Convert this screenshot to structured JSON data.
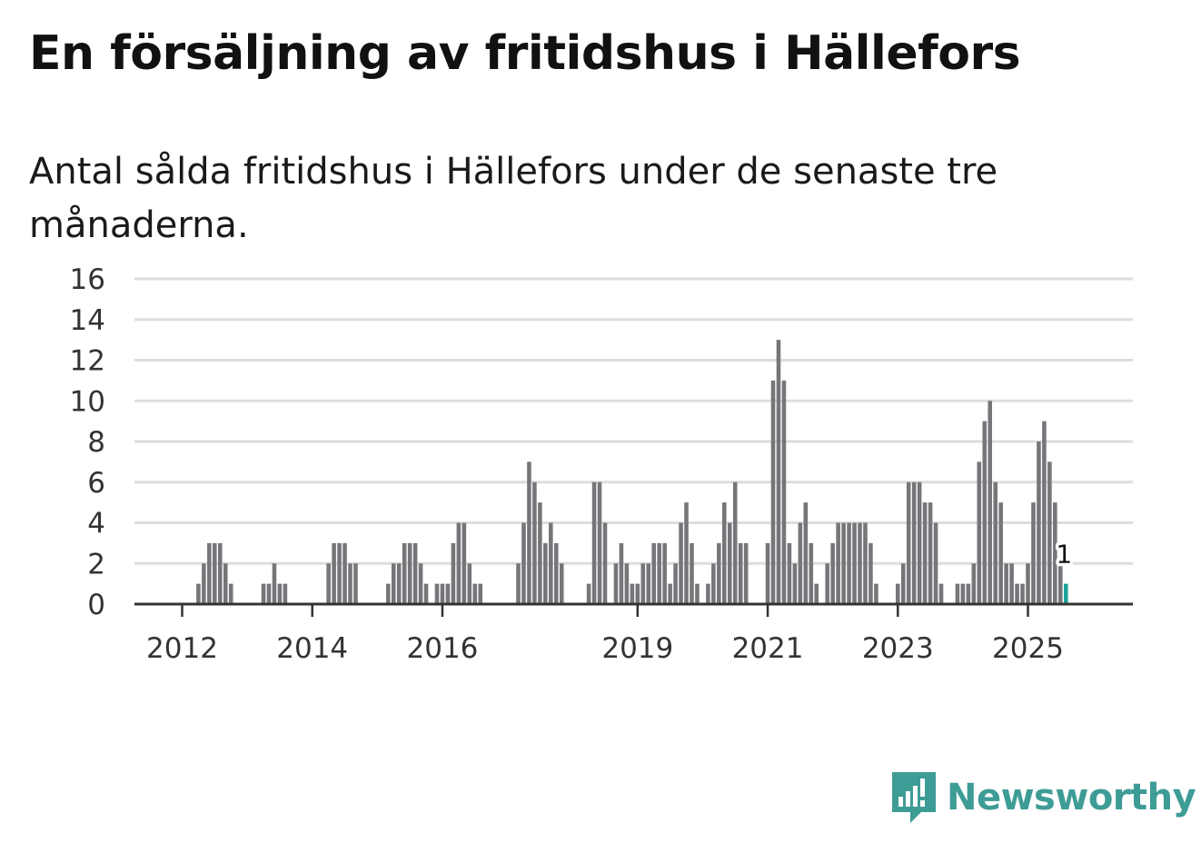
{
  "title": "En försäljning av fritidshus i Hällefors",
  "subtitle": "Antal sålda fritidshus i Hällefors under de senaste tre månaderna.",
  "brand": {
    "name": "Newsworthy",
    "color": "#3e9c96",
    "icon": "bar-chart-speech-bubble-icon"
  },
  "colors": {
    "bar": "#76767a",
    "highlight": "#18a39b",
    "grid": "#dddddd",
    "axis": "#333333"
  },
  "chart_data": {
    "type": "bar",
    "title": "",
    "xlabel": "",
    "ylabel": "",
    "ylim": [
      0,
      16
    ],
    "y_ticks": [
      "0",
      "2",
      "4",
      "6",
      "8",
      "10",
      "12",
      "14",
      "16"
    ],
    "x_ticks": [
      {
        "label": "2012",
        "month": "2012-01"
      },
      {
        "label": "2014",
        "month": "2014-01"
      },
      {
        "label": "2016",
        "month": "2016-01"
      },
      {
        "label": "2019",
        "month": "2019-01"
      },
      {
        "label": "2021",
        "month": "2021-01"
      },
      {
        "label": "2023",
        "month": "2023-01"
      },
      {
        "label": "2025",
        "month": "2025-01"
      }
    ],
    "grid": true,
    "start_month": "2011-05",
    "values": [
      0,
      0,
      0,
      0,
      0,
      0,
      0,
      0,
      0,
      0,
      0,
      1,
      2,
      3,
      3,
      3,
      2,
      1,
      0,
      0,
      0,
      0,
      0,
      1,
      1,
      2,
      1,
      1,
      0,
      0,
      0,
      0,
      0,
      0,
      0,
      2,
      3,
      3,
      3,
      2,
      2,
      0,
      0,
      0,
      0,
      0,
      1,
      2,
      2,
      3,
      3,
      3,
      2,
      1,
      0,
      1,
      1,
      1,
      3,
      4,
      4,
      2,
      1,
      1,
      0,
      0,
      0,
      0,
      0,
      0,
      2,
      4,
      7,
      6,
      5,
      3,
      4,
      3,
      2,
      0,
      0,
      0,
      0,
      1,
      6,
      6,
      4,
      0,
      2,
      3,
      2,
      1,
      1,
      2,
      2,
      3,
      3,
      3,
      1,
      2,
      4,
      5,
      3,
      1,
      0,
      1,
      2,
      3,
      5,
      4,
      6,
      3,
      3,
      0,
      0,
      0,
      3,
      11,
      13,
      11,
      3,
      2,
      4,
      5,
      3,
      1,
      0,
      2,
      3,
      4,
      4,
      4,
      4,
      4,
      4,
      3,
      1,
      0,
      0,
      0,
      1,
      2,
      6,
      6,
      6,
      5,
      5,
      4,
      1,
      0,
      0,
      1,
      1,
      1,
      2,
      7,
      9,
      10,
      6,
      5,
      2,
      2,
      1,
      1,
      2,
      5,
      8,
      9,
      7,
      5,
      2,
      1
    ],
    "highlight_last": true,
    "last_label": "1"
  }
}
